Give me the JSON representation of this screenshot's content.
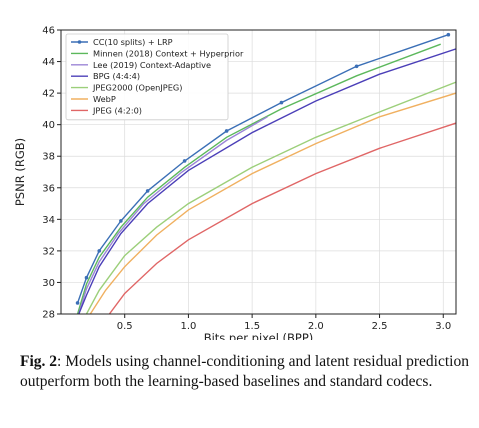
{
  "chart_data": {
    "type": "line",
    "xlabel": "Bits per pixel (BPP)",
    "ylabel": "PSNR (RGB)",
    "xlim": [
      0.0,
      3.1
    ],
    "ylim": [
      28,
      46
    ],
    "xticks": [
      "0.5",
      "1.0",
      "1.5",
      "2.0",
      "2.5",
      "3.0"
    ],
    "xtick_values": [
      0.5,
      1.0,
      1.5,
      2.0,
      2.5,
      3.0
    ],
    "yticks": [
      "28",
      "30",
      "32",
      "34",
      "36",
      "38",
      "40",
      "42",
      "44",
      "46"
    ],
    "ytick_values": [
      28,
      30,
      32,
      34,
      36,
      38,
      40,
      42,
      44,
      46
    ],
    "grid": true,
    "legend_position": "top-left",
    "series": [
      {
        "name": "CC(10 splits) + LRP",
        "color": "#3b6fb6",
        "markers": true,
        "points": [
          [
            0.13,
            28.7
          ],
          [
            0.2,
            30.3
          ],
          [
            0.3,
            32.0
          ],
          [
            0.47,
            33.9
          ],
          [
            0.68,
            35.8
          ],
          [
            0.97,
            37.7
          ],
          [
            1.3,
            39.6
          ],
          [
            1.73,
            41.4
          ],
          [
            2.32,
            43.7
          ],
          [
            3.04,
            45.7
          ]
        ]
      },
      {
        "name": "Minnen (2018) Context + Hyperprior",
        "color": "#5cb85c",
        "markers": false,
        "points": [
          [
            0.13,
            28.0
          ],
          [
            0.2,
            29.9
          ],
          [
            0.3,
            31.6
          ],
          [
            0.47,
            33.5
          ],
          [
            0.68,
            35.4
          ],
          [
            0.97,
            37.3
          ],
          [
            1.3,
            39.2
          ],
          [
            1.73,
            41.0
          ],
          [
            2.32,
            43.1
          ],
          [
            2.98,
            45.1
          ]
        ]
      },
      {
        "name": "Lee (2019) Context-Adaptive",
        "color": "#9b85d6",
        "markers": false,
        "points": [
          [
            0.14,
            28.0
          ],
          [
            0.2,
            29.6
          ],
          [
            0.3,
            31.3
          ],
          [
            0.45,
            33.1
          ],
          [
            0.65,
            35.0
          ],
          [
            0.95,
            37.0
          ],
          [
            1.3,
            39.0
          ],
          [
            1.62,
            40.5
          ]
        ]
      },
      {
        "name": "BPG (4:4:4)",
        "color": "#4b3fb8",
        "markers": false,
        "points": [
          [
            0.14,
            28.0
          ],
          [
            0.2,
            29.2
          ],
          [
            0.3,
            31.0
          ],
          [
            0.47,
            33.1
          ],
          [
            0.68,
            35.0
          ],
          [
            1.0,
            37.1
          ],
          [
            1.5,
            39.5
          ],
          [
            2.0,
            41.5
          ],
          [
            2.5,
            43.2
          ],
          [
            3.1,
            44.8
          ]
        ]
      },
      {
        "name": "JPEG2000 (OpenJPEG)",
        "color": "#9ccf7a",
        "markers": false,
        "points": [
          [
            0.2,
            28.0
          ],
          [
            0.3,
            29.5
          ],
          [
            0.5,
            31.7
          ],
          [
            0.75,
            33.5
          ],
          [
            1.0,
            35.0
          ],
          [
            1.5,
            37.3
          ],
          [
            2.0,
            39.2
          ],
          [
            2.5,
            40.8
          ],
          [
            3.1,
            42.7
          ]
        ]
      },
      {
        "name": "WebP",
        "color": "#f0b060",
        "markers": false,
        "points": [
          [
            0.23,
            28.0
          ],
          [
            0.35,
            29.5
          ],
          [
            0.5,
            31.0
          ],
          [
            0.75,
            33.0
          ],
          [
            1.0,
            34.6
          ],
          [
            1.5,
            36.9
          ],
          [
            2.0,
            38.8
          ],
          [
            2.5,
            40.5
          ],
          [
            3.1,
            42.0
          ]
        ]
      },
      {
        "name": "JPEG (4:2:0)",
        "color": "#e06666",
        "markers": false,
        "points": [
          [
            0.38,
            28.0
          ],
          [
            0.5,
            29.3
          ],
          [
            0.75,
            31.2
          ],
          [
            1.0,
            32.7
          ],
          [
            1.5,
            35.0
          ],
          [
            2.0,
            36.9
          ],
          [
            2.5,
            38.5
          ],
          [
            3.1,
            40.1
          ]
        ]
      }
    ]
  },
  "caption": {
    "label": "Fig. 2",
    "text": ": Models using channel-conditioning and latent residual prediction outperform both the learning-based baselines and standard codecs."
  }
}
